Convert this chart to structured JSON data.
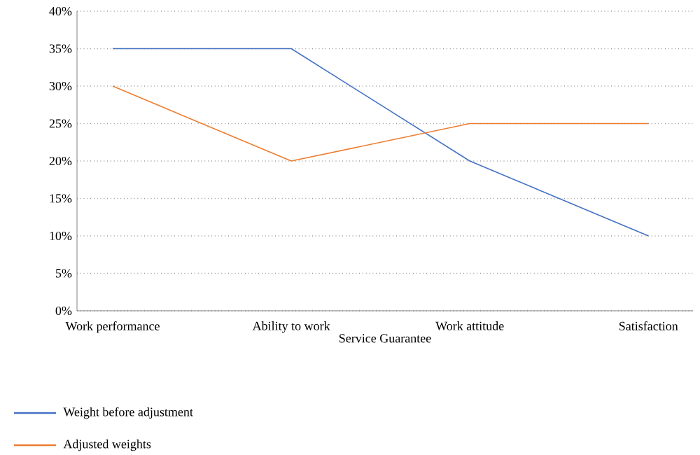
{
  "chart_data": {
    "type": "line",
    "xlabel": "Service Guarantee",
    "categories": [
      "Work performance",
      "Ability to work",
      "Work attitude",
      "Satisfaction"
    ],
    "series": [
      {
        "name": "Weight before adjustment",
        "color": "#4472c4",
        "values": [
          35,
          35,
          20,
          10
        ]
      },
      {
        "name": "Adjusted weights",
        "color": "#ed7d31",
        "values": [
          30,
          20,
          25,
          25
        ]
      }
    ],
    "ylim": [
      0,
      40
    ],
    "yticks": [
      {
        "value": 0,
        "label": "0%"
      },
      {
        "value": 5,
        "label": "5%"
      },
      {
        "value": 10,
        "label": "10%"
      },
      {
        "value": 15,
        "label": "15%"
      },
      {
        "value": 20,
        "label": "20%"
      },
      {
        "value": 25,
        "label": "25%"
      },
      {
        "value": 30,
        "label": "30%"
      },
      {
        "value": 35,
        "label": "35%"
      },
      {
        "value": 40,
        "label": "40%"
      }
    ],
    "grid": "y",
    "legend": "bottom",
    "marker": "none",
    "line_style": "solid"
  }
}
